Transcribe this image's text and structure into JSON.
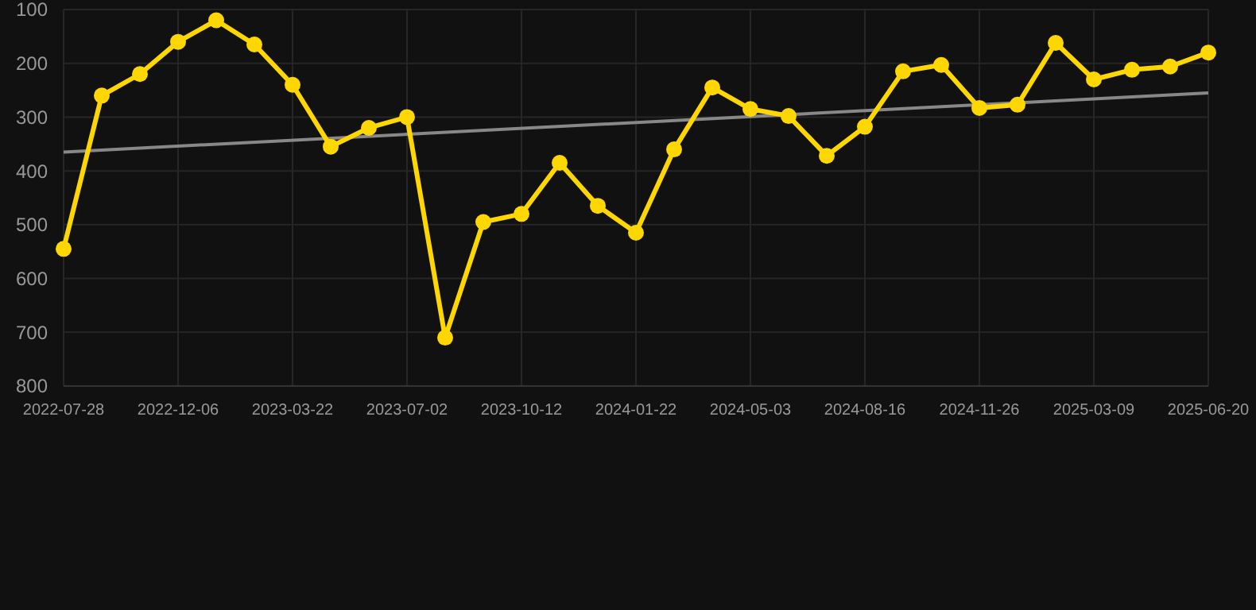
{
  "chart_data": {
    "type": "line",
    "categories": [
      "2022-07-28",
      null,
      null,
      "2022-12-06",
      null,
      null,
      "2023-03-22",
      null,
      null,
      "2023-07-02",
      null,
      null,
      "2023-10-12",
      null,
      null,
      "2024-01-22",
      null,
      null,
      "2024-05-03",
      null,
      null,
      "2024-08-16",
      null,
      null,
      "2024-11-26",
      null,
      null,
      "2025-03-09",
      null,
      null,
      "2025-06-20"
    ],
    "series": [
      {
        "color": "#ffd700",
        "marker": "circle",
        "values": [
          545,
          260,
          220,
          160,
          120,
          165,
          240,
          355,
          320,
          300,
          710,
          495,
          480,
          385,
          465,
          515,
          360,
          245,
          285,
          298,
          372,
          318,
          215,
          203,
          283,
          277,
          162,
          230,
          212,
          206,
          180
        ]
      },
      {
        "type": "line",
        "color": "#888888",
        "marker": "none",
        "values": [
          365,
          null,
          null,
          null,
          null,
          null,
          null,
          null,
          null,
          null,
          null,
          null,
          null,
          null,
          null,
          null,
          null,
          null,
          null,
          null,
          null,
          null,
          null,
          null,
          null,
          null,
          null,
          null,
          null,
          null,
          255
        ]
      }
    ],
    "ylim": [
      800,
      100
    ],
    "yticks": [
      100,
      200,
      300,
      400,
      500,
      600,
      700,
      800
    ],
    "grid": true
  }
}
